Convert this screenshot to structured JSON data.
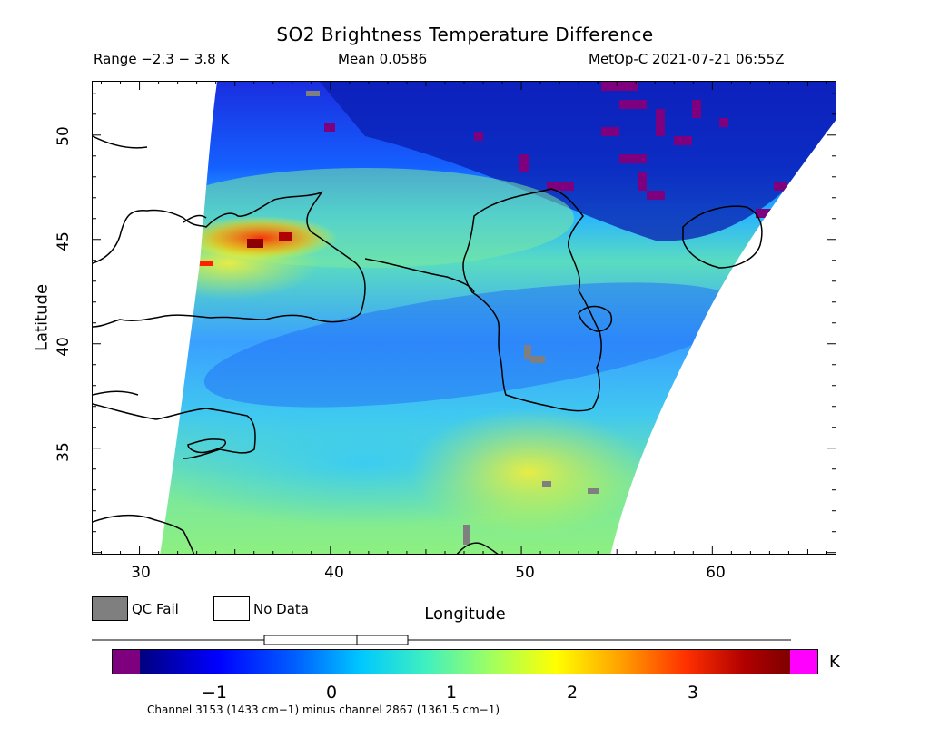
{
  "header": {
    "title": "SO2 Brightness Temperature Difference",
    "range": "Range −2.3 − 3.8 K",
    "mean": "Mean 0.0586",
    "satellite_time": "MetOp-C 2021-07-21 06:55Z"
  },
  "axes": {
    "xlabel": "Longitude",
    "ylabel": "Latitude",
    "lon_range": [
      27.5,
      66.5
    ],
    "lat_range": [
      29.9,
      52.6
    ],
    "lon_ticks": [
      "30",
      "40",
      "50",
      "60"
    ],
    "lat_ticks": [
      "50",
      "45",
      "40",
      "35"
    ]
  },
  "legend": {
    "qc_fail": "QC Fail",
    "no_data": "No Data",
    "qc_fail_color": "#7f7f7f",
    "no_data_color": "#ffffff"
  },
  "colorbar": {
    "unit": "K",
    "ticks": [
      "−1",
      "0",
      "1",
      "2",
      "3"
    ],
    "under_color": "#7f007f",
    "over_color": "#ff00ff",
    "range": [
      -1.6,
      3.8
    ]
  },
  "footnote": "Channel 3153 (1433 cm−1) minus channel 2867 (1361.5 cm−1)",
  "map_features": {
    "hotspot": "SO2 hotspot near Crimea / Kerch Strait",
    "regions": [
      "Black Sea",
      "Caspian Sea",
      "Aral Sea",
      "Mediterranean"
    ]
  }
}
